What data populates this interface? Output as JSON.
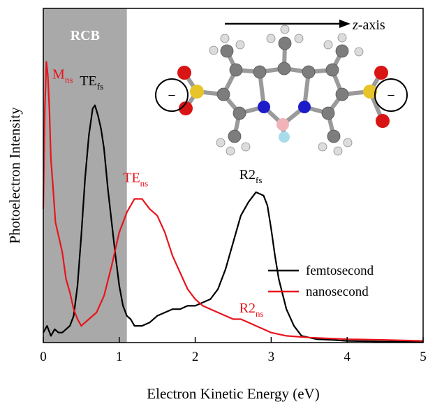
{
  "chart_data": {
    "type": "line",
    "xlabel": "Electron Kinetic Energy (eV)",
    "ylabel": "Photoelectron Intensity",
    "xlim": [
      0,
      5
    ],
    "ylim": [
      0,
      1
    ],
    "xticks": [
      "0",
      "1",
      "2",
      "3",
      "4",
      "5"
    ],
    "yticks_shown": false,
    "legend_position": "center-right",
    "shaded_region": {
      "label": "RCB",
      "x_range": [
        0,
        1.1
      ],
      "color": "#a9a9a9"
    },
    "inset": {
      "axis_label": "z-axis",
      "charge_symbol": "−"
    },
    "series": [
      {
        "name": "femtosecond",
        "color": "#000000",
        "x": [
          0.0,
          0.05,
          0.1,
          0.15,
          0.2,
          0.25,
          0.3,
          0.35,
          0.4,
          0.45,
          0.5,
          0.55,
          0.6,
          0.65,
          0.68,
          0.72,
          0.76,
          0.8,
          0.85,
          0.9,
          0.95,
          1.0,
          1.05,
          1.1,
          1.15,
          1.2,
          1.3,
          1.4,
          1.5,
          1.6,
          1.7,
          1.8,
          1.9,
          2.0,
          2.1,
          2.2,
          2.3,
          2.4,
          2.5,
          2.6,
          2.7,
          2.8,
          2.9,
          2.95,
          3.0,
          3.05,
          3.1,
          3.2,
          3.3,
          3.4,
          3.6,
          3.8,
          4.0,
          4.5,
          5.0
        ],
        "y": [
          0.03,
          0.05,
          0.02,
          0.04,
          0.03,
          0.03,
          0.04,
          0.05,
          0.08,
          0.17,
          0.32,
          0.49,
          0.62,
          0.7,
          0.71,
          0.68,
          0.64,
          0.58,
          0.46,
          0.36,
          0.26,
          0.17,
          0.11,
          0.08,
          0.07,
          0.05,
          0.05,
          0.06,
          0.08,
          0.09,
          0.1,
          0.1,
          0.11,
          0.11,
          0.12,
          0.13,
          0.16,
          0.22,
          0.3,
          0.38,
          0.42,
          0.45,
          0.44,
          0.41,
          0.34,
          0.26,
          0.19,
          0.1,
          0.05,
          0.02,
          0.01,
          0.008,
          0.005,
          0.003,
          0.002
        ]
      },
      {
        "name": "nanosecond",
        "color": "#e8141c",
        "x": [
          0.0,
          0.02,
          0.04,
          0.06,
          0.08,
          0.1,
          0.13,
          0.16,
          0.2,
          0.25,
          0.3,
          0.35,
          0.4,
          0.45,
          0.5,
          0.55,
          0.6,
          0.7,
          0.8,
          0.9,
          1.0,
          1.1,
          1.2,
          1.3,
          1.4,
          1.5,
          1.6,
          1.7,
          1.8,
          1.9,
          2.0,
          2.1,
          2.2,
          2.3,
          2.4,
          2.5,
          2.6,
          2.7,
          2.8,
          2.9,
          3.0,
          3.2,
          3.5,
          4.0,
          4.5,
          5.0
        ],
        "y": [
          0.4,
          0.7,
          0.84,
          0.8,
          0.7,
          0.55,
          0.46,
          0.36,
          0.32,
          0.27,
          0.19,
          0.15,
          0.1,
          0.07,
          0.05,
          0.06,
          0.07,
          0.09,
          0.14,
          0.23,
          0.33,
          0.39,
          0.43,
          0.43,
          0.4,
          0.38,
          0.33,
          0.26,
          0.21,
          0.16,
          0.13,
          0.11,
          0.1,
          0.09,
          0.08,
          0.07,
          0.07,
          0.06,
          0.05,
          0.04,
          0.03,
          0.02,
          0.015,
          0.01,
          0.008,
          0.005
        ]
      }
    ],
    "annotations": [
      {
        "base": "M",
        "sub": "ns",
        "color": "#e8141c",
        "x": 0.12,
        "y": 0.79
      },
      {
        "base": "TE",
        "sub": "fs",
        "color": "#000000",
        "x": 0.48,
        "y": 0.77
      },
      {
        "base": "TE",
        "sub": "ns",
        "color": "#e8141c",
        "x": 1.05,
        "y": 0.48
      },
      {
        "base": "R2",
        "sub": "fs",
        "color": "#000000",
        "x": 2.58,
        "y": 0.49
      },
      {
        "base": "R2",
        "sub": "ns",
        "color": "#e8141c",
        "x": 2.58,
        "y": 0.09
      }
    ]
  }
}
